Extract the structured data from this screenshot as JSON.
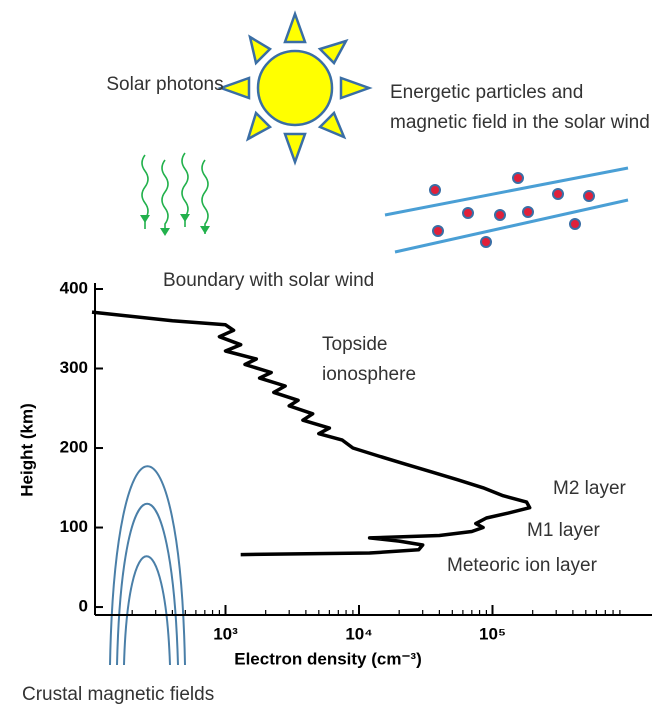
{
  "chart_data": {
    "type": "line",
    "xlabel": "Electron density (cm⁻³)",
    "ylabel": "Height (km)",
    "x_scale": "log",
    "xlim": [
      100,
      1000000
    ],
    "ylim": [
      -10,
      400
    ],
    "xticks": [
      {
        "value": 1000,
        "label": "10³"
      },
      {
        "value": 10000,
        "label": "10⁴"
      },
      {
        "value": 100000,
        "label": "10⁵"
      }
    ],
    "yticks": [
      0,
      100,
      200,
      300,
      400
    ],
    "x": [
      100,
      400,
      1000,
      1150,
      900,
      1300,
      1000,
      1700,
      1400,
      2200,
      1800,
      2800,
      2300,
      3500,
      3000,
      4500,
      3800,
      6000,
      5000,
      7500,
      9000,
      14000,
      22000,
      35000,
      55000,
      85000,
      120000,
      180000,
      190000,
      130000,
      90000,
      75000,
      85000,
      70000,
      40000,
      12000,
      20000,
      30000,
      28000,
      12000,
      1300
    ],
    "series": [
      {
        "color": "#000000",
        "values": [
          371,
          360,
          355,
          348,
          340,
          330,
          322,
          312,
          305,
          295,
          288,
          278,
          270,
          260,
          253,
          243,
          235,
          225,
          218,
          210,
          200,
          190,
          180,
          170,
          160,
          150,
          140,
          132,
          125,
          118,
          112,
          105,
          100,
          95,
          90,
          87,
          83,
          78,
          72,
          68,
          66
        ]
      }
    ],
    "annotations": [
      "Boundary with solar wind",
      "Topside ionosphere",
      "M2 layer",
      "M1 layer",
      "Meteoric ion layer"
    ]
  },
  "illustration": {
    "solar_photons": "Solar photons",
    "solar_wind": "Energetic particles and magnetic field in the solar wind",
    "crustal_fields": "Crustal magnetic fields"
  }
}
